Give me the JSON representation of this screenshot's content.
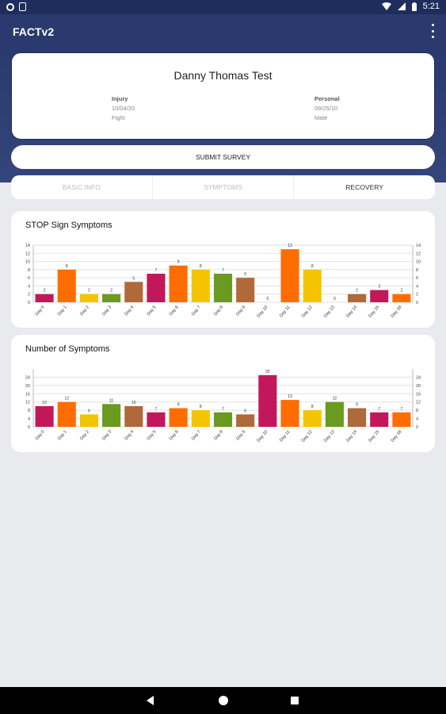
{
  "status_bar": {
    "time": "5:21",
    "icons": [
      "settings-icon",
      "sd-card-icon",
      "wifi-icon",
      "signal-icon",
      "battery-icon"
    ]
  },
  "app_bar": {
    "title": "FACTv2",
    "menu_icon": "more-vert-icon"
  },
  "patient": {
    "name": "Danny Thomas Test",
    "injury_label": "Injury",
    "injury_date": "10/04/20",
    "injury_type": "Fight",
    "personal_label": "Personal",
    "birth_date": "09/25/10",
    "sex": "Male"
  },
  "submit_label": "SUBMIT SURVEY",
  "tabs": [
    {
      "label": "BASIC INFO",
      "active": false
    },
    {
      "label": "SYMPTOMS",
      "active": false
    },
    {
      "label": "RECOVERY",
      "active": true
    }
  ],
  "chart_data": [
    {
      "type": "bar",
      "title": "STOP Sign Symptoms",
      "categories": [
        "Day 0",
        "Day 1",
        "Day 2",
        "Day 3",
        "Day 4",
        "Day 5",
        "Day 6",
        "Day 7",
        "Day 8",
        "Day 9",
        "Day 10",
        "Day 11",
        "Day 12",
        "Day 13",
        "Day 14",
        "Day 15",
        "Day 16"
      ],
      "values": [
        2,
        8,
        2,
        2,
        5,
        7,
        9,
        8,
        7,
        6,
        0,
        13,
        8,
        0,
        2,
        3,
        2
      ],
      "colors": [
        "#c2185b",
        "#ff6d00",
        "#f5c400",
        "#6a9a1f",
        "#b0693a",
        "#c2185b",
        "#ff6d00",
        "#f5c400",
        "#6a9a1f",
        "#b0693a",
        "#c2185b",
        "#ff6d00",
        "#f5c400",
        "#6a9a1f",
        "#b0693a",
        "#c2185b",
        "#ff6d00"
      ],
      "ylim": [
        0,
        14
      ],
      "yticks": [
        0,
        2,
        4,
        6,
        8,
        10,
        12,
        14
      ],
      "grid": true
    },
    {
      "type": "bar",
      "title": "Number of Symptoms",
      "categories": [
        "Day 0",
        "Day 1",
        "Day 2",
        "Day 3",
        "Day 4",
        "Day 5",
        "Day 6",
        "Day 7",
        "Day 8",
        "Day 9",
        "Day 10",
        "Day 11",
        "Day 12",
        "Day 13",
        "Day 14",
        "Day 15",
        "Day 16"
      ],
      "values": [
        10,
        12,
        6,
        11,
        10,
        7,
        9,
        8,
        7,
        6,
        25,
        13,
        8,
        12,
        9,
        7,
        7
      ],
      "colors": [
        "#c2185b",
        "#ff6d00",
        "#f5c400",
        "#6a9a1f",
        "#b0693a",
        "#c2185b",
        "#ff6d00",
        "#f5c400",
        "#6a9a1f",
        "#b0693a",
        "#c2185b",
        "#ff6d00",
        "#f5c400",
        "#6a9a1f",
        "#b0693a",
        "#c2185b",
        "#ff6d00"
      ],
      "ylim": [
        0,
        28
      ],
      "yticks": [
        0,
        4,
        8,
        12,
        16,
        20,
        24
      ],
      "grid": true
    }
  ],
  "nav_bar": {
    "icons": [
      "back-icon",
      "home-icon",
      "recents-icon"
    ]
  }
}
